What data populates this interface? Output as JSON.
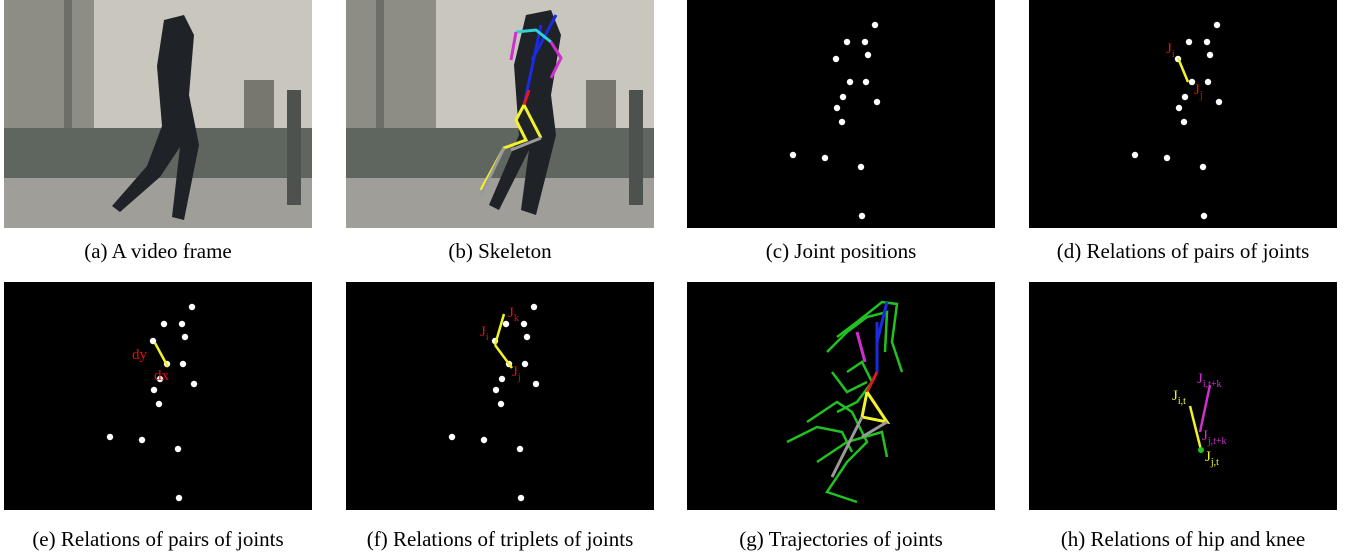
{
  "panels": [
    {
      "caption": "(a) A video frame"
    },
    {
      "caption": "(b) Skeleton"
    },
    {
      "caption": "(c) Joint positions"
    },
    {
      "caption": "(d) Relations of pairs of joints",
      "labels": [
        {
          "text": "J",
          "sub": "i"
        },
        {
          "text": "J",
          "sub": "j"
        }
      ]
    },
    {
      "caption": "(e) Relations of pairs of joints",
      "labels": [
        {
          "text": "dy"
        },
        {
          "text": "dx"
        }
      ]
    },
    {
      "caption": "(f) Relations of triplets of joints",
      "labels": [
        {
          "text": "J",
          "sub": "k"
        },
        {
          "text": "J",
          "sub": "i"
        },
        {
          "text": "J",
          "sub": "j"
        }
      ]
    },
    {
      "caption": "(g) Trajectories of joints"
    },
    {
      "caption": "(h) Relations of hip and knee",
      "labels": [
        {
          "text": "J",
          "sub": "i,t+k"
        },
        {
          "text": "J",
          "sub": "i,t"
        },
        {
          "text": "J",
          "sub": "j,t+k"
        },
        {
          "text": "J",
          "sub": "j,t"
        }
      ]
    }
  ]
}
